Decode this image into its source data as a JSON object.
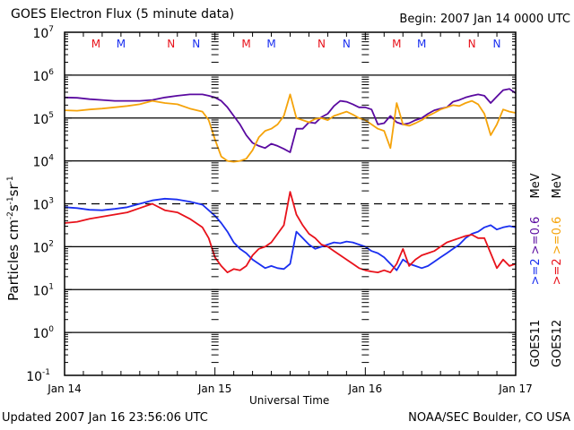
{
  "header": {
    "title": "GOES Electron Flux (5 minute data)",
    "begin": "Begin: 2007 Jan 14 0000 UTC"
  },
  "footer": {
    "updated": "Updated 2007 Jan 16 23:56:06 UTC",
    "credit": "NOAA/SEC Boulder, CO USA"
  },
  "chart_data": {
    "type": "line",
    "title": "GOES Electron Flux (5 minute data)",
    "xlabel": "Universal Time",
    "ylabel": "Particles cm-2 s-1 sr-1",
    "yscale": "log",
    "ylim": [
      0.1,
      10000000
    ],
    "xlim_hours": [
      0,
      72
    ],
    "x_tick_labels": [
      "Jan 14",
      "Jan 15",
      "Jan 16",
      "Jan 17"
    ],
    "y_tick_labels": [
      {
        "base": "10",
        "exp": "7"
      },
      {
        "base": "10",
        "exp": "6"
      },
      {
        "base": "10",
        "exp": "5"
      },
      {
        "base": "10",
        "exp": "4"
      },
      {
        "base": "10",
        "exp": "3"
      },
      {
        "base": "10",
        "exp": "2"
      },
      {
        "base": "10",
        "exp": "1"
      },
      {
        "base": "10",
        "exp": "0"
      },
      {
        "base": "10",
        "exp": "-1"
      }
    ],
    "grid_lines_log10": [
      6,
      5,
      4,
      2,
      1,
      0
    ],
    "threshold_line": {
      "log10": 3,
      "style": "dashed"
    },
    "local_time_markers": [
      {
        "label": "M",
        "color": "#e8121b",
        "hour": 5.0
      },
      {
        "label": "M",
        "color": "#1a2ff0",
        "hour": 9.0
      },
      {
        "label": "N",
        "color": "#e8121b",
        "hour": 17.0
      },
      {
        "label": "N",
        "color": "#1a2ff0",
        "hour": 21.0
      },
      {
        "label": "M",
        "color": "#e8121b",
        "hour": 29.0
      },
      {
        "label": "M",
        "color": "#1a2ff0",
        "hour": 33.0
      },
      {
        "label": "N",
        "color": "#e8121b",
        "hour": 41.0
      },
      {
        "label": "N",
        "color": "#1a2ff0",
        "hour": 45.0
      },
      {
        "label": "M",
        "color": "#e8121b",
        "hour": 53.0
      },
      {
        "label": "M",
        "color": "#1a2ff0",
        "hour": 57.0
      },
      {
        "label": "N",
        "color": "#e8121b",
        "hour": 65.0
      },
      {
        "label": "N",
        "color": "#1a2ff0",
        "hour": 69.0
      }
    ],
    "legend": {
      "placement": "right-vertical",
      "entries": [
        {
          "satellite": "GOES11",
          "low": ">=2",
          "high": ">=0.6",
          "unit": "MeV",
          "low_color": "#1a2ff0",
          "high_color": "#5a0aa0"
        },
        {
          "satellite": "GOES12",
          "low": ">=2",
          "high": ">=0.6",
          "unit": "MeV",
          "low_color": "#e8121b",
          "high_color": "#f5a30a"
        }
      ]
    },
    "series": [
      {
        "name": "GOES11 >=0.6 MeV",
        "color": "#5a0aa0",
        "hours": [
          0,
          2,
          4,
          6,
          8,
          10,
          12,
          14,
          16,
          18,
          20,
          22,
          23,
          24,
          25,
          26,
          27,
          28,
          29,
          30,
          31,
          32,
          33,
          34,
          35,
          36,
          37,
          38,
          39,
          40,
          41,
          42,
          43,
          44,
          45,
          46,
          47,
          48,
          49,
          50,
          51,
          52,
          53,
          54,
          55,
          56,
          57,
          58,
          59,
          60,
          61,
          62,
          63,
          64,
          65,
          66,
          67,
          68,
          69,
          70,
          71,
          72
        ],
        "log10": [
          5.48,
          5.47,
          5.44,
          5.42,
          5.4,
          5.4,
          5.4,
          5.42,
          5.48,
          5.52,
          5.55,
          5.55,
          5.52,
          5.48,
          5.4,
          5.25,
          5.05,
          4.85,
          4.6,
          4.42,
          4.35,
          4.3,
          4.4,
          4.35,
          4.28,
          4.2,
          4.75,
          4.75,
          4.9,
          4.88,
          5.02,
          5.1,
          5.28,
          5.4,
          5.38,
          5.32,
          5.25,
          5.25,
          5.2,
          4.85,
          4.88,
          5.05,
          4.9,
          4.85,
          4.88,
          4.95,
          5.0,
          5.1,
          5.18,
          5.22,
          5.25,
          5.38,
          5.42,
          5.48,
          5.52,
          5.55,
          5.52,
          5.35,
          5.5,
          5.65,
          5.68,
          5.58
        ]
      },
      {
        "name": "GOES12 >=0.6 MeV",
        "color": "#f5a30a",
        "hours": [
          0,
          2,
          4,
          6,
          8,
          10,
          12,
          14,
          16,
          18,
          20,
          22,
          23,
          24,
          25,
          26,
          27,
          28,
          29,
          30,
          31,
          32,
          33,
          34,
          35,
          36,
          37,
          38,
          39,
          40,
          41,
          42,
          43,
          44,
          45,
          46,
          47,
          48,
          49,
          50,
          51,
          52,
          53,
          54,
          55,
          56,
          57,
          58,
          59,
          60,
          61,
          62,
          63,
          64,
          65,
          66,
          67,
          68,
          69,
          70,
          71,
          72
        ],
        "log10": [
          5.18,
          5.17,
          5.2,
          5.22,
          5.25,
          5.28,
          5.32,
          5.4,
          5.35,
          5.32,
          5.22,
          5.15,
          4.95,
          4.5,
          4.1,
          4.0,
          3.98,
          4.0,
          4.05,
          4.25,
          4.55,
          4.7,
          4.75,
          4.85,
          5.05,
          5.55,
          5.0,
          4.95,
          4.9,
          4.98,
          5.0,
          4.95,
          5.05,
          5.1,
          5.15,
          5.08,
          5.0,
          4.95,
          4.85,
          4.75,
          4.7,
          4.3,
          5.35,
          4.85,
          4.82,
          4.88,
          4.95,
          5.05,
          5.12,
          5.2,
          5.25,
          5.3,
          5.28,
          5.35,
          5.4,
          5.32,
          5.1,
          4.6,
          4.85,
          5.2,
          5.15,
          5.12
        ]
      },
      {
        "name": "GOES11 >=2 MeV",
        "color": "#1a2ff0",
        "hours": [
          0,
          2,
          4,
          6,
          8,
          10,
          12,
          14,
          16,
          18,
          20,
          22,
          23,
          24,
          25,
          26,
          27,
          28,
          29,
          30,
          31,
          32,
          33,
          34,
          35,
          36,
          37,
          38,
          39,
          40,
          41,
          42,
          43,
          44,
          45,
          46,
          47,
          48,
          49,
          50,
          51,
          52,
          53,
          54,
          55,
          56,
          57,
          58,
          59,
          60,
          61,
          62,
          63,
          64,
          65,
          66,
          67,
          68,
          69,
          70,
          71,
          72
        ],
        "log10": [
          2.92,
          2.9,
          2.86,
          2.85,
          2.88,
          2.92,
          3.0,
          3.08,
          3.12,
          3.1,
          3.05,
          2.98,
          2.85,
          2.72,
          2.55,
          2.35,
          2.1,
          1.95,
          1.85,
          1.7,
          1.6,
          1.5,
          1.55,
          1.5,
          1.48,
          1.6,
          2.35,
          2.2,
          2.05,
          1.95,
          2.0,
          2.05,
          2.1,
          2.08,
          2.12,
          2.1,
          2.05,
          2.0,
          1.9,
          1.85,
          1.75,
          1.6,
          1.45,
          1.7,
          1.6,
          1.55,
          1.5,
          1.55,
          1.65,
          1.75,
          1.85,
          1.95,
          2.05,
          2.2,
          2.3,
          2.35,
          2.45,
          2.5,
          2.4,
          2.45,
          2.48,
          2.45
        ]
      },
      {
        "name": "GOES12 >=2 MeV",
        "color": "#e8121b",
        "hours": [
          0,
          2,
          4,
          6,
          8,
          10,
          12,
          14,
          16,
          18,
          20,
          22,
          23,
          24,
          25,
          26,
          27,
          28,
          29,
          30,
          31,
          32,
          33,
          34,
          35,
          36,
          37,
          38,
          39,
          40,
          41,
          42,
          43,
          44,
          45,
          46,
          47,
          48,
          49,
          50,
          51,
          52,
          53,
          54,
          55,
          56,
          57,
          58,
          59,
          60,
          61,
          62,
          63,
          64,
          65,
          66,
          67,
          68,
          69,
          70,
          71,
          72
        ],
        "log10": [
          2.55,
          2.58,
          2.65,
          2.7,
          2.75,
          2.8,
          2.9,
          3.0,
          2.85,
          2.8,
          2.65,
          2.45,
          2.2,
          1.75,
          1.55,
          1.4,
          1.48,
          1.45,
          1.55,
          1.8,
          1.95,
          2.0,
          2.1,
          2.3,
          2.5,
          3.28,
          2.75,
          2.5,
          2.3,
          2.2,
          2.05,
          2.0,
          1.9,
          1.8,
          1.7,
          1.6,
          1.5,
          1.45,
          1.42,
          1.4,
          1.45,
          1.4,
          1.6,
          1.95,
          1.55,
          1.7,
          1.8,
          1.85,
          1.9,
          2.0,
          2.1,
          2.15,
          2.2,
          2.25,
          2.28,
          2.2,
          2.2,
          1.85,
          1.5,
          1.7,
          1.55,
          1.6
        ]
      }
    ]
  }
}
